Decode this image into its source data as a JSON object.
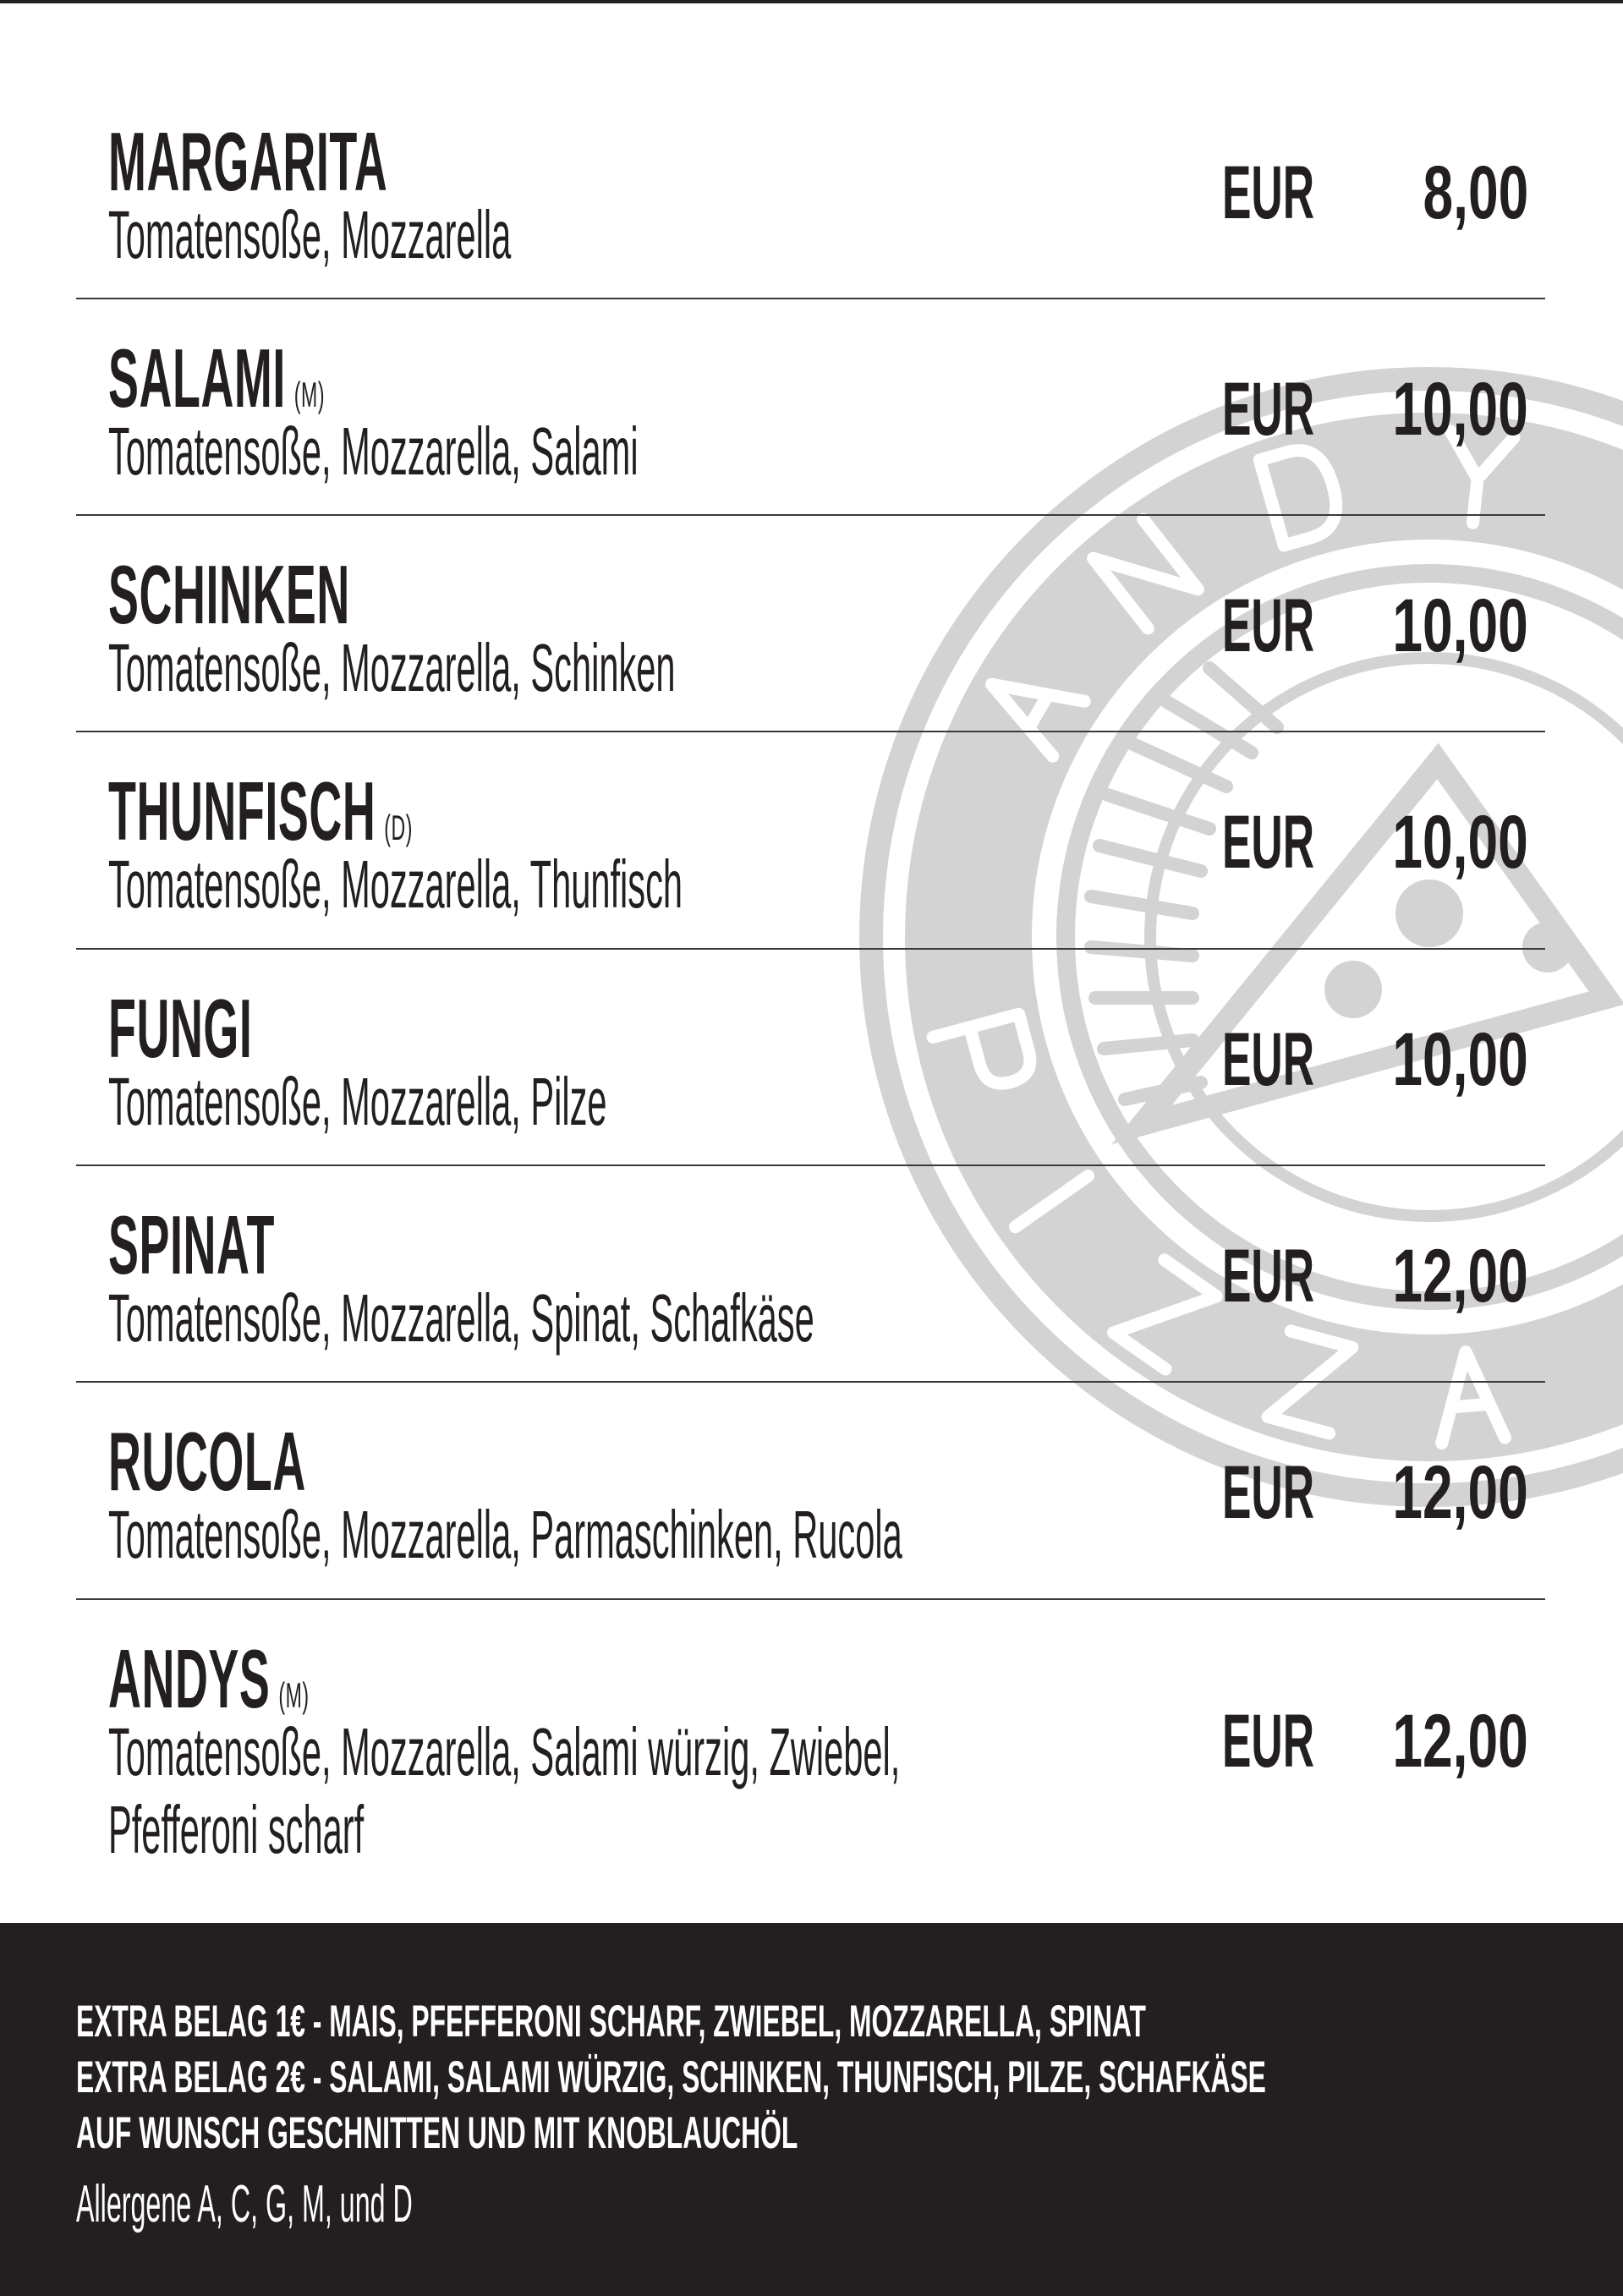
{
  "logo": {
    "text_top": "ANDY'S",
    "text_bottom": "PIZZA",
    "color": "#d3d3d3"
  },
  "currency": "EUR",
  "items": [
    {
      "name": "MARGARITA",
      "allergen": "",
      "description": "Tomatensoße, Mozzarella",
      "price": "8,00"
    },
    {
      "name": "SALAMI",
      "allergen": "(M)",
      "description": "Tomatensoße, Mozzarella, Salami",
      "price": "10,00"
    },
    {
      "name": "SCHINKEN",
      "allergen": "",
      "description": "Tomatensoße, Mozzarella, Schinken",
      "price": "10,00"
    },
    {
      "name": "THUNFISCH",
      "allergen": "(D)",
      "description": "Tomatensoße, Mozzarella, Thunfisch",
      "price": "10,00"
    },
    {
      "name": "FUNGI",
      "allergen": "",
      "description": "Tomatensoße, Mozzarella, Pilze",
      "price": "10,00"
    },
    {
      "name": "SPINAT",
      "allergen": "",
      "description": "Tomatensoße, Mozzarella, Spinat, Schafkäse",
      "price": "12,00"
    },
    {
      "name": "RUCOLA",
      "allergen": "",
      "description": "Tomatensoße, Mozzarella, Parmaschinken, Rucola",
      "price": "12,00"
    },
    {
      "name": "ANDYS",
      "allergen": "(M)",
      "description": "Tomatensoße, Mozzarella, Salami würzig, Zwiebel, Pfefferoni scharf",
      "price": "12,00"
    }
  ],
  "footer": {
    "lines": [
      "EXTRA BELAG 1€ - MAIS, PFEFFERONI SCHARF, ZWIEBEL, MOZZARELLA, SPINAT",
      "EXTRA BELAG 2€ - SALAMI, SALAMI WÜRZIG, SCHINKEN, THUNFISCH, PILZE, SCHAFKÄSE",
      "AUF WUNSCH GESCHNITTEN UND MIT KNOBLAUCHÖL"
    ],
    "allergens": "Allergene A, C, G, M, und D",
    "background": "#231f20"
  }
}
